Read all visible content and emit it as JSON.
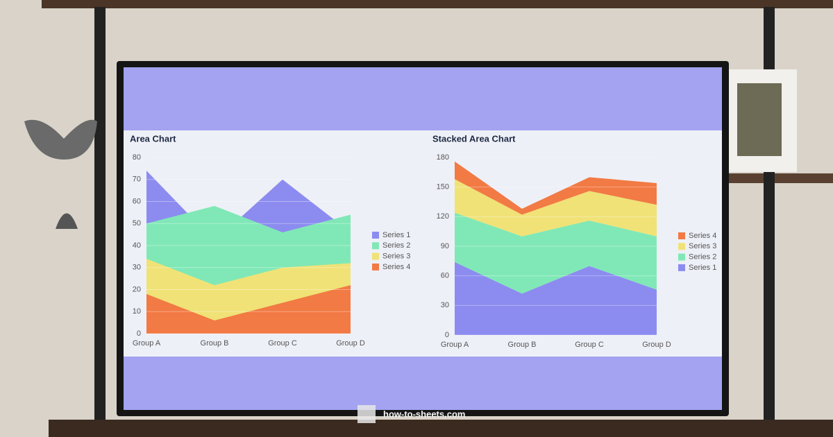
{
  "chart_data": [
    {
      "type": "area",
      "title": "Area Chart",
      "categories": [
        "Group A",
        "Group B",
        "Group C",
        "Group D"
      ],
      "series": [
        {
          "name": "Series 1",
          "color": "#8c8cf0",
          "values": [
            74,
            42,
            70,
            46
          ]
        },
        {
          "name": "Series 2",
          "color": "#80e8b6",
          "values": [
            50,
            58,
            46,
            54
          ]
        },
        {
          "name": "Series 3",
          "color": "#f0e276",
          "values": [
            34,
            22,
            30,
            32
          ]
        },
        {
          "name": "Series 4",
          "color": "#f27a44",
          "values": [
            18,
            6,
            14,
            22
          ]
        }
      ],
      "ylim": [
        0,
        80
      ],
      "yticks": [
        0,
        10,
        20,
        30,
        40,
        50,
        60,
        70,
        80
      ],
      "grid": true
    },
    {
      "type": "stacked_area",
      "title": "Stacked Area Chart",
      "categories": [
        "Group A",
        "Group B",
        "Group C",
        "Group D"
      ],
      "series": [
        {
          "name": "Series 1",
          "color": "#8c8cf0",
          "values": [
            74,
            42,
            70,
            46
          ]
        },
        {
          "name": "Series 2",
          "color": "#80e8b6",
          "values": [
            50,
            58,
            46,
            54
          ]
        },
        {
          "name": "Series 3",
          "color": "#f0e276",
          "values": [
            34,
            22,
            30,
            32
          ]
        },
        {
          "name": "Series 4",
          "color": "#f27a44",
          "values": [
            18,
            6,
            14,
            22
          ]
        }
      ],
      "ylim": [
        0,
        180
      ],
      "yticks": [
        0,
        30,
        60,
        90,
        120,
        150,
        180
      ],
      "grid": true
    }
  ],
  "watermark": "how-to-sheets.com"
}
